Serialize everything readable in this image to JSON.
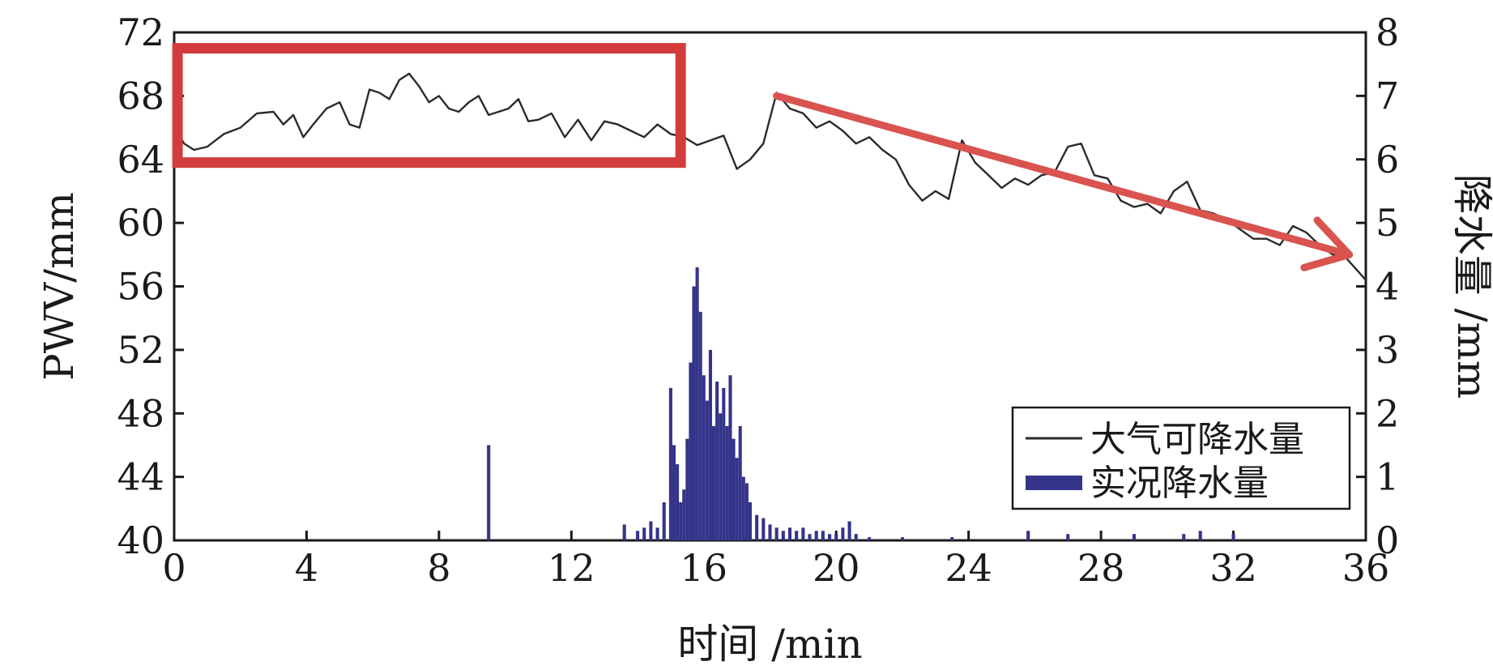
{
  "chart_data": {
    "type": "line+bar",
    "xlabel": "时间 /min",
    "ylabel_left": "PWV/mm",
    "ylabel_right": "降水量 /mm",
    "xlim": [
      0,
      36
    ],
    "ylim_left": [
      40,
      72
    ],
    "ylim_right": [
      0,
      8
    ],
    "x_ticks": [
      "0",
      "4",
      "8",
      "12",
      "16",
      "20",
      "24",
      "28",
      "32",
      "36"
    ],
    "y_left_ticks": [
      "40",
      "44",
      "48",
      "52",
      "56",
      "60",
      "64",
      "68",
      "72"
    ],
    "y_right_ticks": [
      "0",
      "1",
      "2",
      "3",
      "4",
      "5",
      "6",
      "7",
      "8"
    ],
    "grid": false,
    "legend_position": "lower-right",
    "series": [
      {
        "name": "大气可降水量",
        "kind": "line",
        "axis": "left",
        "color": "#2b2b2b",
        "x": [
          0,
          0.3,
          0.6,
          1.0,
          1.5,
          2.0,
          2.5,
          3.0,
          3.3,
          3.6,
          3.9,
          4.2,
          4.6,
          5.0,
          5.3,
          5.6,
          5.9,
          6.2,
          6.5,
          6.8,
          7.1,
          7.4,
          7.7,
          8.0,
          8.3,
          8.6,
          8.9,
          9.2,
          9.5,
          9.8,
          10.1,
          10.4,
          10.7,
          11.0,
          11.4,
          11.8,
          12.2,
          12.6,
          13.0,
          13.4,
          13.8,
          14.2,
          14.6,
          15.0,
          15.4,
          15.8,
          16.2,
          16.6,
          17.0,
          17.4,
          17.8,
          18.2,
          18.6,
          19.0,
          19.4,
          19.8,
          20.2,
          20.6,
          21.0,
          21.4,
          21.8,
          22.2,
          22.6,
          23.0,
          23.4,
          23.8,
          24.2,
          24.6,
          25.0,
          25.4,
          25.8,
          26.2,
          26.6,
          27.0,
          27.4,
          27.8,
          28.2,
          28.6,
          29.0,
          29.4,
          29.8,
          30.2,
          30.6,
          31.0,
          31.4,
          31.8,
          32.2,
          32.6,
          33.0,
          33.4,
          33.8,
          34.2,
          34.6,
          35.0,
          35.4,
          36.0
        ],
        "y": [
          66.0,
          65.0,
          64.6,
          64.8,
          65.6,
          66.0,
          66.9,
          67.0,
          66.2,
          66.8,
          65.4,
          66.2,
          67.2,
          67.6,
          66.2,
          66.0,
          68.4,
          68.2,
          67.8,
          69.0,
          69.4,
          68.6,
          67.6,
          68.0,
          67.2,
          67.0,
          67.6,
          68.0,
          66.8,
          67.0,
          67.2,
          67.8,
          66.4,
          66.5,
          66.9,
          65.4,
          66.5,
          65.2,
          66.4,
          66.2,
          65.8,
          65.4,
          66.2,
          65.6,
          65.4,
          64.9,
          65.2,
          65.5,
          63.4,
          64.0,
          65.0,
          68.2,
          67.2,
          66.9,
          66.0,
          66.4,
          65.8,
          65.0,
          65.4,
          64.6,
          64.0,
          62.4,
          61.4,
          62.0,
          61.5,
          65.2,
          63.8,
          63.0,
          62.2,
          62.8,
          62.4,
          63.0,
          63.2,
          64.8,
          65.0,
          63.0,
          62.8,
          61.4,
          61.0,
          61.2,
          60.6,
          62.0,
          62.6,
          60.8,
          60.6,
          60.2,
          59.6,
          59.0,
          59.0,
          58.6,
          59.8,
          59.4,
          58.6,
          58.0,
          57.8,
          56.4
        ]
      },
      {
        "name": "实况降水量",
        "kind": "bar",
        "axis": "right",
        "color": "#34348a",
        "x": [
          9.5,
          13.6,
          14.0,
          14.2,
          14.4,
          14.6,
          14.8,
          15.0,
          15.1,
          15.2,
          15.3,
          15.4,
          15.5,
          15.6,
          15.7,
          15.8,
          15.9,
          16.0,
          16.1,
          16.2,
          16.3,
          16.4,
          16.5,
          16.6,
          16.7,
          16.8,
          16.9,
          17.0,
          17.1,
          17.2,
          17.3,
          17.4,
          17.6,
          17.8,
          18.0,
          18.2,
          18.4,
          18.6,
          18.8,
          19.0,
          19.2,
          19.4,
          19.6,
          19.8,
          20.0,
          20.2,
          20.4,
          20.6,
          21.0,
          22.0,
          23.5,
          25.8,
          27.0,
          29.0,
          30.5,
          31.0,
          32.0
        ],
        "y": [
          1.5,
          0.25,
          0.15,
          0.2,
          0.3,
          0.2,
          0.6,
          2.4,
          1.5,
          1.2,
          0.6,
          0.8,
          1.6,
          2.8,
          4.0,
          4.3,
          3.6,
          2.6,
          2.2,
          3.0,
          1.8,
          2.5,
          2.0,
          2.4,
          1.8,
          2.6,
          1.6,
          1.3,
          1.8,
          1.0,
          0.9,
          0.6,
          0.4,
          0.35,
          0.25,
          0.2,
          0.15,
          0.2,
          0.15,
          0.2,
          0.1,
          0.15,
          0.15,
          0.1,
          0.1,
          0.2,
          0.3,
          0.1,
          0.05,
          0.05,
          0.05,
          0.15,
          0.1,
          0.1,
          0.1,
          0.15,
          0.1
        ]
      }
    ],
    "annotations": {
      "highlight_box": {
        "x0": 0.1,
        "x1": 15.3,
        "y0": 63.8,
        "y1": 71.0,
        "color": "#d23c3c"
      },
      "trend_arrow": {
        "x0": 18.2,
        "y0": 68.0,
        "x1": 35.5,
        "y1": 58.0,
        "color": "#d9534f"
      }
    }
  }
}
